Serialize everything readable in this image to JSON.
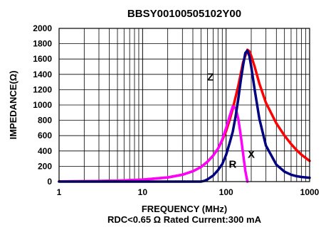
{
  "chart_data": {
    "type": "line",
    "title": "BBSY00100505102Y00",
    "xlabel": "FREQUENCY (MHz)",
    "ylabel": "IMPEDANCE(Ω)",
    "note": "RDC<0.65 Ω Rated Current:300 mA",
    "x_scale": "log",
    "xlim": [
      1,
      1000
    ],
    "ylim": [
      0,
      2000
    ],
    "grid": true,
    "x_ticks": [
      1,
      10,
      100,
      1000
    ],
    "x_tick_labels": [
      "1",
      "10",
      "100",
      "1000"
    ],
    "y_ticks": [
      0,
      200,
      400,
      600,
      800,
      1000,
      1200,
      1400,
      1600,
      1800,
      2000
    ],
    "y_tick_labels": [
      "0",
      "200",
      "400",
      "600",
      "800",
      "1000",
      "1200",
      "1400",
      "1600",
      "1800",
      "2000"
    ],
    "series": [
      {
        "name": "Z",
        "color": "#ff0000",
        "x": [
          1,
          2,
          5,
          10,
          20,
          30,
          40,
          50,
          60,
          70,
          80,
          90,
          100,
          110,
          120,
          140,
          160,
          180,
          190,
          200,
          220,
          250,
          300,
          400,
          500,
          600,
          700,
          800,
          1000
        ],
        "y": [
          2,
          5,
          12,
          25,
          55,
          90,
          135,
          190,
          260,
          340,
          430,
          540,
          660,
          800,
          950,
          1250,
          1560,
          1720,
          1700,
          1640,
          1500,
          1280,
          1030,
          760,
          600,
          490,
          410,
          350,
          270
        ]
      },
      {
        "name": "R",
        "color": "#ff00ff",
        "x": [
          1,
          2,
          5,
          10,
          20,
          30,
          40,
          50,
          60,
          70,
          80,
          90,
          100,
          110,
          120,
          130,
          140,
          150,
          160,
          170,
          180
        ],
        "y": [
          2,
          5,
          12,
          25,
          55,
          90,
          135,
          190,
          260,
          340,
          430,
          550,
          700,
          850,
          980,
          960,
          820,
          600,
          360,
          140,
          0
        ]
      },
      {
        "name": "X",
        "color": "#000080",
        "x": [
          1,
          40,
          50,
          55,
          60,
          70,
          80,
          90,
          100,
          110,
          120,
          130,
          140,
          150,
          160,
          170,
          180,
          190,
          200,
          220,
          250,
          300,
          400,
          500,
          600,
          700,
          800,
          1000
        ],
        "y": [
          0,
          0,
          0,
          10,
          30,
          80,
          150,
          230,
          350,
          500,
          650,
          850,
          1080,
          1320,
          1520,
          1680,
          1710,
          1640,
          1500,
          1200,
          820,
          470,
          220,
          130,
          90,
          70,
          60,
          50
        ]
      }
    ],
    "annotations": [
      {
        "text": "Z",
        "x": 65,
        "y": 1320
      },
      {
        "text": "R",
        "x": 120,
        "y": 180
      },
      {
        "text": "X",
        "x": 200,
        "y": 310
      }
    ]
  }
}
